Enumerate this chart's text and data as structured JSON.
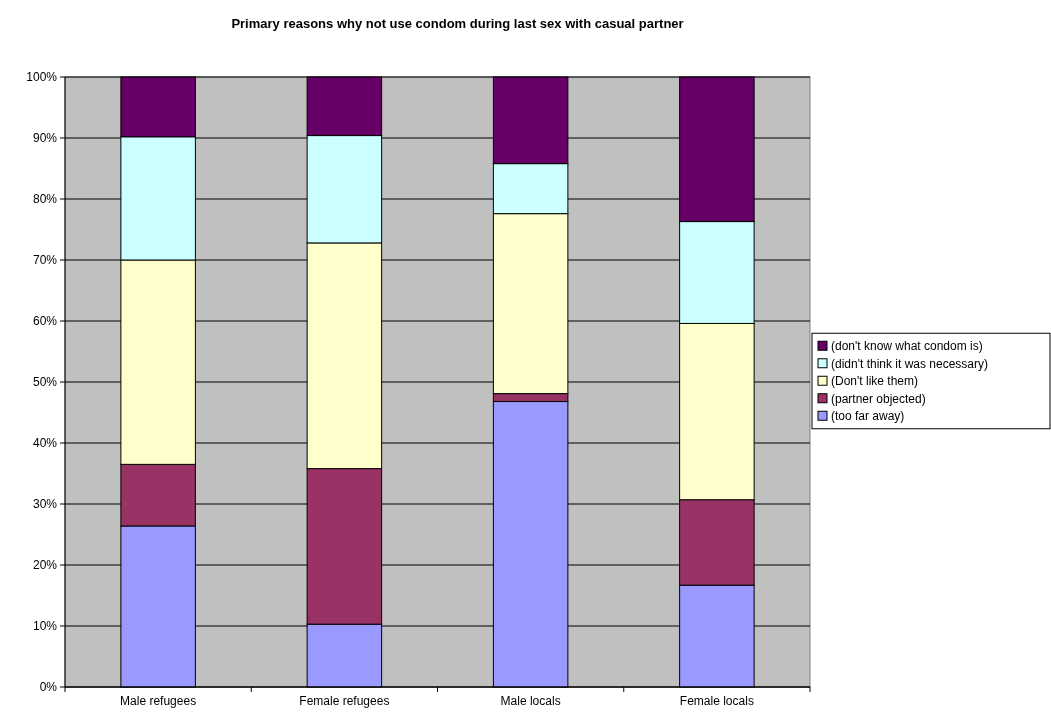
{
  "chart_data": {
    "type": "bar",
    "title": "Primary reasons why not use condom during last sex with casual partner",
    "categories": [
      "Male refugees",
      "Female refugees",
      "Male locals",
      "Female locals"
    ],
    "stacked": true,
    "ylim": [
      0,
      100
    ],
    "yticks": [
      {
        "value": 0,
        "label": "0%"
      },
      {
        "value": 10,
        "label": "10%"
      },
      {
        "value": 20,
        "label": "20%"
      },
      {
        "value": 30,
        "label": "30%"
      },
      {
        "value": 40,
        "label": "40%"
      },
      {
        "value": 50,
        "label": "50%"
      },
      {
        "value": 60,
        "label": "60%"
      },
      {
        "value": 70,
        "label": "70%"
      },
      {
        "value": 80,
        "label": "80%"
      },
      {
        "value": 90,
        "label": "90%"
      },
      {
        "value": 100,
        "label": "100%"
      }
    ],
    "grid": "y",
    "legend": "right",
    "series": [
      {
        "name": "(too far away)",
        "color": "#9999ff",
        "values": [
          26.4,
          10.3,
          46.8,
          16.7
        ]
      },
      {
        "name": "(partner objected)",
        "color": "#993366",
        "values": [
          10.1,
          25.5,
          1.3,
          14.0
        ]
      },
      {
        "name": "(Don't like them)",
        "color": "#ffffcc",
        "values": [
          33.5,
          37.0,
          29.5,
          28.9
        ]
      },
      {
        "name": "(didn't think it was necessary)",
        "color": "#ccffff",
        "values": [
          20.2,
          17.6,
          8.2,
          16.7
        ]
      },
      {
        "name": "(don't know what condom is)",
        "color": "#660066",
        "values": [
          9.8,
          9.6,
          14.2,
          23.7
        ]
      }
    ]
  }
}
